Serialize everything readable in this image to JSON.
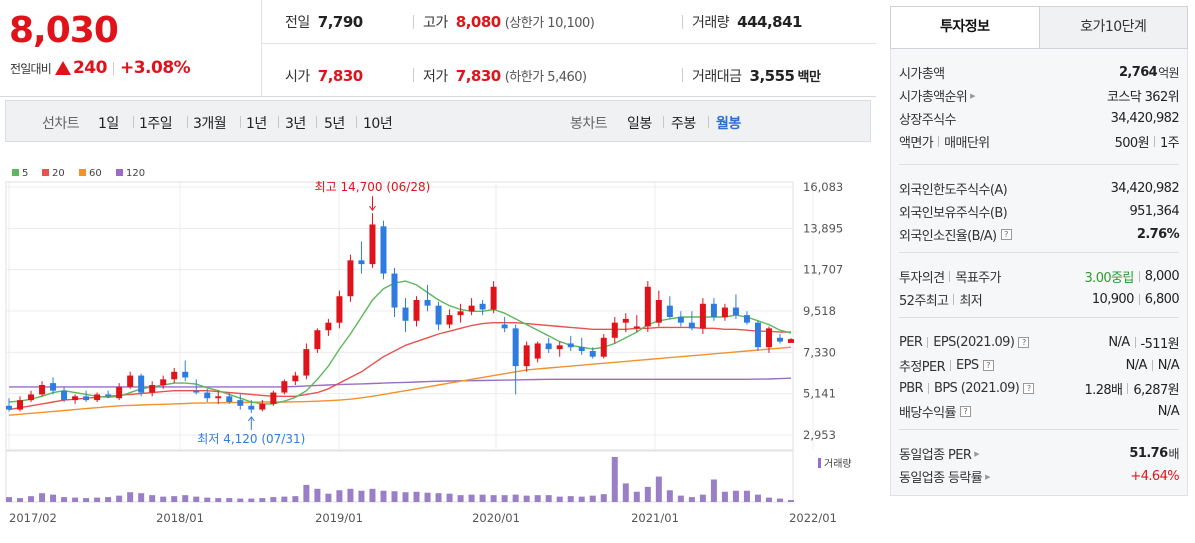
{
  "price": {
    "current": "8,030",
    "change_label": "전일대비",
    "change_value": "240",
    "change_pct": "+3.08%"
  },
  "stats": {
    "prev_label": "전일",
    "prev_value": "7,790",
    "high_label": "고가",
    "high_value": "8,080",
    "upper_limit": "(상한가 10,100)",
    "volume_label": "거래량",
    "volume_value": "444,841",
    "open_label": "시가",
    "open_value": "7,830",
    "low_label": "저가",
    "low_value": "7,830",
    "lower_limit": "(하한가 5,460)",
    "amount_label": "거래대금",
    "amount_value": "3,555",
    "amount_unit": "백만"
  },
  "period_bar": {
    "line_label": "선차트",
    "line_periods": [
      "1일",
      "1주일",
      "3개월",
      "1년",
      "3년",
      "5년",
      "10년"
    ],
    "candle_label": "봉차트",
    "candle_periods": [
      "일봉",
      "주봉",
      "월봉"
    ],
    "selected": "월봉"
  },
  "tabs": {
    "invest": "투자정보",
    "orderbook": "호가10단계"
  },
  "invest": {
    "g1": [
      {
        "label": "시가총액",
        "value": "2,764",
        "unit": "억원"
      },
      {
        "label": "시가총액순위",
        "value": "코스닥 362위"
      },
      {
        "label": "상장주식수",
        "value": "34,420,982"
      },
      {
        "label": "액면가",
        "label2": "매매단위",
        "value": "500원",
        "value2": "1주"
      }
    ],
    "g2": [
      {
        "label": "외국인한도주식수(A)",
        "value": "34,420,982"
      },
      {
        "label": "외국인보유주식수(B)",
        "value": "951,364"
      },
      {
        "label": "외국인소진율(B/A)",
        "value": "2.76%"
      }
    ],
    "g3": [
      {
        "label": "투자의견",
        "label2": "목표주가",
        "value": "3.00중립",
        "value2": "8,000"
      },
      {
        "label": "52주최고",
        "label2": "최저",
        "value": "10,900",
        "value2": "6,800"
      }
    ],
    "g4": [
      {
        "label": "PER",
        "label2": "EPS(2021.09)",
        "value": "N/A",
        "value2": "-511원"
      },
      {
        "label": "추정PER",
        "label2": "EPS",
        "value": "N/A",
        "value2": "N/A"
      },
      {
        "label": "PBR",
        "label2": "BPS (2021.09)",
        "value": "1.28배",
        "value2": "6,287원"
      },
      {
        "label": "배당수익률",
        "value": "N/A"
      }
    ],
    "g5": [
      {
        "label": "동일업종 PER",
        "value": "51.76",
        "unit": "배"
      },
      {
        "label": "동일업종 등락률",
        "value": "+4.64%"
      }
    ]
  },
  "chart_data": {
    "type": "candlestick",
    "interval": "monthly",
    "legend": [
      {
        "name": "5",
        "color": "#5cb85c"
      },
      {
        "name": "20",
        "color": "#e8534f"
      },
      {
        "name": "60",
        "color": "#f0922e"
      },
      {
        "name": "120",
        "color": "#9b6cc7"
      }
    ],
    "y_ticks": [
      "16,083",
      "13,895",
      "11,707",
      "9,518",
      "7,330",
      "5,141",
      "2,953"
    ],
    "ylim": [
      2953,
      16083
    ],
    "x_ticks": [
      "2017/02",
      "2018/01",
      "2019/01",
      "2020/01",
      "2021/01",
      "2022/01"
    ],
    "annotations": {
      "high": "최고 14,700 (06/28)",
      "low": "최저 4,120 (07/31)"
    },
    "volume_label": "거래량",
    "candles": [
      {
        "o": 4500,
        "h": 4900,
        "l": 4200,
        "c": 4300
      },
      {
        "o": 4300,
        "h": 5000,
        "l": 4200,
        "c": 4800
      },
      {
        "o": 4800,
        "h": 5300,
        "l": 4700,
        "c": 5100
      },
      {
        "o": 5100,
        "h": 5800,
        "l": 5000,
        "c": 5600
      },
      {
        "o": 5700,
        "h": 6000,
        "l": 5100,
        "c": 5300
      },
      {
        "o": 5300,
        "h": 5500,
        "l": 4700,
        "c": 4800
      },
      {
        "o": 4800,
        "h": 5100,
        "l": 4600,
        "c": 5000
      },
      {
        "o": 5000,
        "h": 5300,
        "l": 4700,
        "c": 4800
      },
      {
        "o": 4800,
        "h": 5200,
        "l": 4700,
        "c": 5100
      },
      {
        "o": 5100,
        "h": 5300,
        "l": 4900,
        "c": 5000
      },
      {
        "o": 4900,
        "h": 5700,
        "l": 4800,
        "c": 5500
      },
      {
        "o": 5500,
        "h": 6300,
        "l": 5400,
        "c": 6100
      },
      {
        "o": 6100,
        "h": 6200,
        "l": 5000,
        "c": 5200
      },
      {
        "o": 5200,
        "h": 5800,
        "l": 5000,
        "c": 5600
      },
      {
        "o": 5600,
        "h": 6100,
        "l": 5400,
        "c": 5900
      },
      {
        "o": 5900,
        "h": 6500,
        "l": 5700,
        "c": 6300
      },
      {
        "o": 6300,
        "h": 6900,
        "l": 5800,
        "c": 6000
      },
      {
        "o": 5300,
        "h": 5900,
        "l": 5100,
        "c": 5200
      },
      {
        "o": 5200,
        "h": 5400,
        "l": 4700,
        "c": 4900
      },
      {
        "o": 4900,
        "h": 5300,
        "l": 4600,
        "c": 5000
      },
      {
        "o": 5000,
        "h": 5200,
        "l": 4600,
        "c": 4700
      },
      {
        "o": 4800,
        "h": 5100,
        "l": 4300,
        "c": 4500
      },
      {
        "o": 4500,
        "h": 4800,
        "l": 4120,
        "c": 4300
      },
      {
        "o": 4300,
        "h": 4800,
        "l": 4200,
        "c": 4600
      },
      {
        "o": 4600,
        "h": 5300,
        "l": 4500,
        "c": 5200
      },
      {
        "o": 5200,
        "h": 5900,
        "l": 5100,
        "c": 5800
      },
      {
        "o": 5800,
        "h": 6300,
        "l": 5600,
        "c": 6100
      },
      {
        "o": 6100,
        "h": 7800,
        "l": 5900,
        "c": 7500
      },
      {
        "o": 7500,
        "h": 8600,
        "l": 7300,
        "c": 8500
      },
      {
        "o": 8500,
        "h": 9100,
        "l": 8200,
        "c": 8900
      },
      {
        "o": 8900,
        "h": 10600,
        "l": 8600,
        "c": 10300
      },
      {
        "o": 10300,
        "h": 12500,
        "l": 10000,
        "c": 12200
      },
      {
        "o": 12200,
        "h": 13200,
        "l": 11500,
        "c": 12000
      },
      {
        "o": 12000,
        "h": 14700,
        "l": 11800,
        "c": 14100
      },
      {
        "o": 14000,
        "h": 14300,
        "l": 11200,
        "c": 11500
      },
      {
        "o": 11500,
        "h": 11800,
        "l": 9200,
        "c": 9700
      },
      {
        "o": 9700,
        "h": 10200,
        "l": 8400,
        "c": 9000
      },
      {
        "o": 9000,
        "h": 10300,
        "l": 8700,
        "c": 10100
      },
      {
        "o": 10100,
        "h": 10900,
        "l": 9500,
        "c": 9800
      },
      {
        "o": 9800,
        "h": 10000,
        "l": 8500,
        "c": 8800
      },
      {
        "o": 8800,
        "h": 9600,
        "l": 8600,
        "c": 9300
      },
      {
        "o": 9300,
        "h": 9900,
        "l": 8900,
        "c": 9500
      },
      {
        "o": 9500,
        "h": 10200,
        "l": 9300,
        "c": 9800
      },
      {
        "o": 9900,
        "h": 10100,
        "l": 9300,
        "c": 9600
      },
      {
        "o": 9600,
        "h": 11100,
        "l": 9400,
        "c": 10800
      },
      {
        "o": 8800,
        "h": 9200,
        "l": 8400,
        "c": 8600
      },
      {
        "o": 8600,
        "h": 8800,
        "l": 5100,
        "c": 6600
      },
      {
        "o": 6600,
        "h": 7900,
        "l": 6300,
        "c": 7700
      },
      {
        "o": 7000,
        "h": 7900,
        "l": 6800,
        "c": 7800
      },
      {
        "o": 7800,
        "h": 8100,
        "l": 7300,
        "c": 7500
      },
      {
        "o": 7500,
        "h": 7900,
        "l": 7100,
        "c": 7700
      },
      {
        "o": 7800,
        "h": 8200,
        "l": 7400,
        "c": 7600
      },
      {
        "o": 7600,
        "h": 8100,
        "l": 7200,
        "c": 7400
      },
      {
        "o": 7400,
        "h": 7600,
        "l": 7000,
        "c": 7100
      },
      {
        "o": 7100,
        "h": 8300,
        "l": 7000,
        "c": 8100
      },
      {
        "o": 8100,
        "h": 9200,
        "l": 7800,
        "c": 8900
      },
      {
        "o": 8900,
        "h": 9400,
        "l": 8400,
        "c": 9100
      },
      {
        "o": 8600,
        "h": 9300,
        "l": 8400,
        "c": 8700
      },
      {
        "o": 8700,
        "h": 11100,
        "l": 8400,
        "c": 10800
      },
      {
        "o": 8900,
        "h": 10600,
        "l": 8700,
        "c": 10100
      },
      {
        "o": 9800,
        "h": 10300,
        "l": 9100,
        "c": 9200
      },
      {
        "o": 9200,
        "h": 9500,
        "l": 8700,
        "c": 8900
      },
      {
        "o": 8900,
        "h": 9500,
        "l": 8500,
        "c": 8600
      },
      {
        "o": 8600,
        "h": 10200,
        "l": 8300,
        "c": 9900
      },
      {
        "o": 9900,
        "h": 10200,
        "l": 9000,
        "c": 9200
      },
      {
        "o": 9200,
        "h": 9900,
        "l": 9000,
        "c": 9700
      },
      {
        "o": 9700,
        "h": 10400,
        "l": 9100,
        "c": 9300
      },
      {
        "o": 9300,
        "h": 9500,
        "l": 8800,
        "c": 8900
      },
      {
        "o": 8900,
        "h": 9000,
        "l": 7400,
        "c": 7600
      },
      {
        "o": 7600,
        "h": 8700,
        "l": 7300,
        "c": 8600
      },
      {
        "o": 8100,
        "h": 8300,
        "l": 7800,
        "c": 7900
      },
      {
        "o": 7830,
        "h": 8080,
        "l": 7830,
        "c": 8030
      }
    ],
    "ma5": [
      4700,
      4750,
      4850,
      5000,
      5200,
      5300,
      5200,
      5100,
      5000,
      4950,
      5000,
      5200,
      5400,
      5500,
      5600,
      5700,
      5700,
      5650,
      5450,
      5300,
      5100,
      4900,
      4700,
      4600,
      4600,
      4750,
      4950,
      5300,
      5900,
      6600,
      7500,
      8300,
      9200,
      10100,
      10700,
      11000,
      11100,
      10900,
      10500,
      10100,
      9800,
      9600,
      9500,
      9500,
      9600,
      9400,
      9100,
      8800,
      8500,
      8200,
      7900,
      7700,
      7600,
      7500,
      7600,
      7800,
      8100,
      8400,
      8800,
      9000,
      9100,
      9200,
      9200,
      9200,
      9200,
      9200,
      9300,
      9200,
      9000,
      8800,
      8500,
      8350
    ],
    "ma20": [
      4300,
      4400,
      4500,
      4600,
      4700,
      4800,
      4850,
      4900,
      4950,
      5000,
      5050,
      5100,
      5150,
      5200,
      5250,
      5300,
      5300,
      5300,
      5300,
      5250,
      5200,
      5150,
      5100,
      5050,
      5000,
      5000,
      5000,
      5100,
      5200,
      5400,
      5700,
      6000,
      6300,
      6700,
      7100,
      7400,
      7700,
      7900,
      8100,
      8300,
      8450,
      8600,
      8750,
      8850,
      8900,
      8900,
      8900,
      8850,
      8800,
      8750,
      8700,
      8650,
      8600,
      8550,
      8550,
      8550,
      8550,
      8600,
      8600,
      8650,
      8650,
      8650,
      8650,
      8600,
      8600,
      8550,
      8550,
      8500,
      8450,
      8450,
      8400,
      8400
    ],
    "ma60": [
      4000,
      4050,
      4100,
      4150,
      4200,
      4250,
      4300,
      4350,
      4400,
      4450,
      4500,
      4520,
      4540,
      4560,
      4580,
      4600,
      4620,
      4640,
      4650,
      4660,
      4670,
      4680,
      4690,
      4700,
      4700,
      4700,
      4710,
      4720,
      4740,
      4770,
      4800,
      4850,
      4920,
      5000,
      5100,
      5200,
      5300,
      5400,
      5500,
      5600,
      5700,
      5800,
      5900,
      6000,
      6100,
      6200,
      6300,
      6400,
      6450,
      6500,
      6550,
      6600,
      6650,
      6700,
      6750,
      6800,
      6850,
      6900,
      6950,
      7000,
      7050,
      7100,
      7150,
      7200,
      7250,
      7300,
      7350,
      7400,
      7450,
      7500,
      7550,
      7600
    ],
    "ma120": [
      5500,
      5500,
      5500,
      5500,
      5500,
      5500,
      5500,
      5500,
      5500,
      5500,
      5500,
      5500,
      5500,
      5500,
      5500,
      5500,
      5500,
      5500,
      5500,
      5500,
      5500,
      5500,
      5500,
      5500,
      5500,
      5500,
      5520,
      5550,
      5580,
      5600,
      5620,
      5640,
      5660,
      5680,
      5700,
      5720,
      5740,
      5760,
      5780,
      5800,
      5810,
      5820,
      5830,
      5840,
      5850,
      5860,
      5870,
      5880,
      5890,
      5900,
      5900,
      5900,
      5900,
      5900,
      5900,
      5900,
      5900,
      5900,
      5900,
      5900,
      5900,
      5900,
      5900,
      5900,
      5900,
      5900,
      5900,
      5900,
      5910,
      5920,
      5940,
      5960
    ],
    "volume": [
      1.0,
      0.8,
      1.2,
      1.8,
      1.5,
      1.0,
      0.9,
      0.8,
      0.9,
      1.0,
      1.3,
      2.0,
      1.8,
      1.4,
      1.1,
      1.2,
      1.4,
      1.1,
      0.9,
      0.8,
      0.8,
      0.7,
      0.7,
      0.8,
      1.0,
      1.1,
      1.2,
      3.5,
      2.7,
      1.7,
      2.4,
      2.7,
      2.3,
      2.7,
      2.3,
      2.2,
      2.0,
      2.1,
      1.9,
      1.8,
      1.7,
      1.4,
      1.5,
      1.5,
      1.4,
      1.4,
      1.5,
      1.3,
      1.4,
      1.4,
      1.1,
      1.2,
      1.1,
      1.3,
      1.6,
      9.2,
      3.8,
      2.1,
      3.1,
      5.2,
      2.4,
      1.3,
      1.0,
      1.5,
      4.6,
      2.1,
      2.3,
      2.3,
      1.5,
      0.9,
      0.7,
      0.4
    ]
  }
}
